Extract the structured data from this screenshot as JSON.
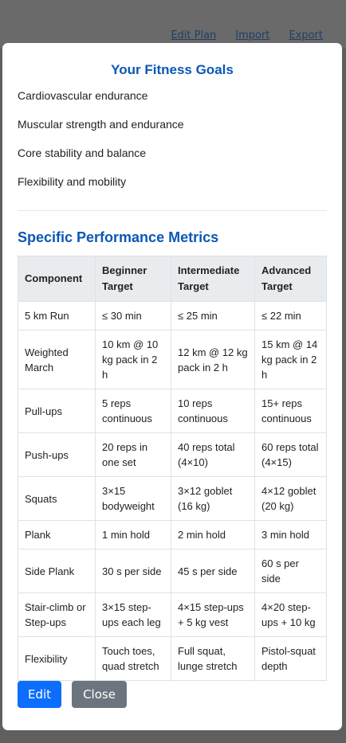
{
  "toolbar": {
    "edit_plan": "Edit Plan",
    "import": "Import",
    "export": "Export"
  },
  "modal": {
    "title": "Your Fitness Goals",
    "goals": [
      "Cardiovascular endurance",
      "Muscular strength and endurance",
      "Core stability and balance",
      "Flexibility and mobility"
    ],
    "metrics_title": "Specific Performance Metrics",
    "table": {
      "headers": [
        "Component",
        "Beginner Target",
        "Intermediate Target",
        "Advanced Target"
      ],
      "rows": [
        [
          "5 km Run",
          "≤ 30 min",
          "≤ 25 min",
          "≤ 22 min"
        ],
        [
          "Weighted March",
          "10 km @ 10 kg pack in 2 h",
          "12 km @ 12 kg pack in 2 h",
          "15 km @ 14 kg pack in 2 h"
        ],
        [
          "Pull-ups",
          "5 reps continuous",
          "10 reps continuous",
          "15+ reps continuous"
        ],
        [
          "Push-ups",
          "20 reps in one set",
          "40 reps total (4×10)",
          "60 reps total (4×15)"
        ],
        [
          "Squats",
          "3×15 bodyweight",
          "3×12 goblet (16 kg)",
          "4×12 goblet (20 kg)"
        ],
        [
          "Plank",
          "1 min hold",
          "2 min hold",
          "3 min hold"
        ],
        [
          "Side Plank",
          "30 s per side",
          "45 s per side",
          "60 s per side"
        ],
        [
          "Stair-climb or Step-ups",
          "3×15 step-ups each leg",
          "4×15 step-ups + 5 kg vest",
          "4×20 step-ups + 10 kg"
        ],
        [
          "Flexibility",
          "Touch toes, quad stretch",
          "Full squat, lunge stretch",
          "Pistol-squat depth"
        ]
      ]
    },
    "edit_label": "Edit",
    "close_label": "Close"
  }
}
